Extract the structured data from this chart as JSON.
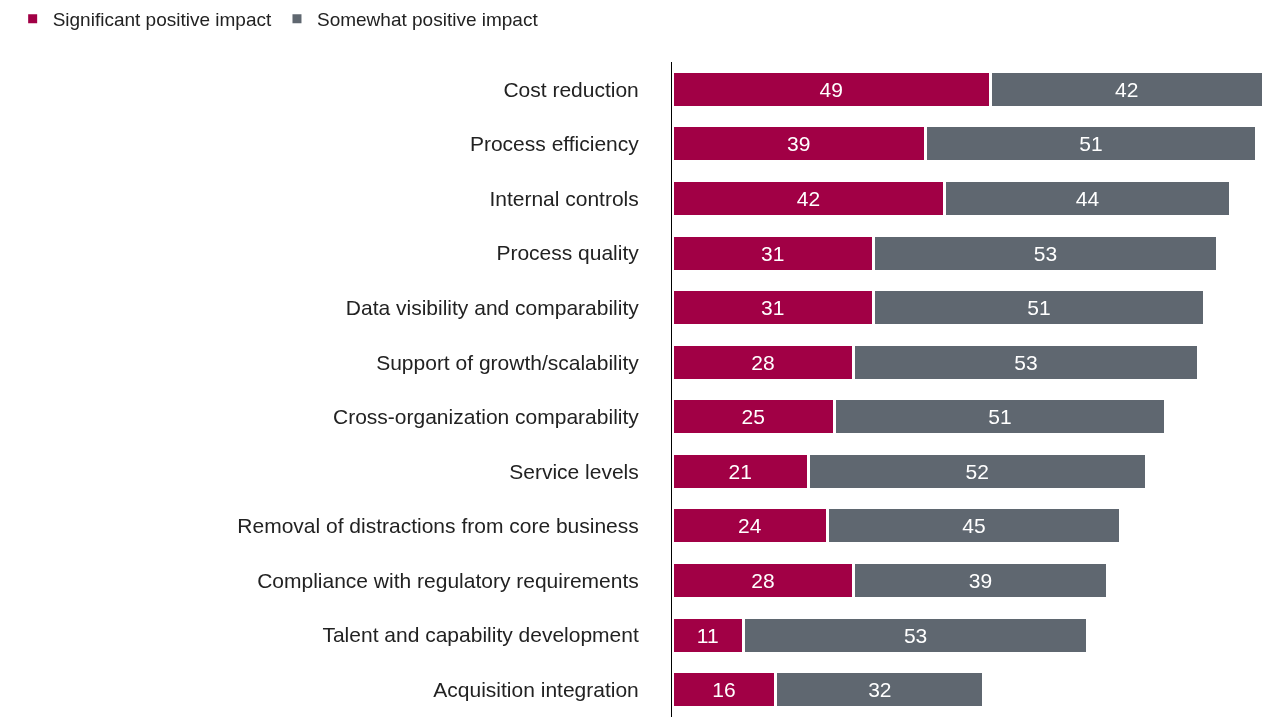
{
  "chart_data": {
    "type": "bar",
    "orientation": "horizontal",
    "stacked": true,
    "data_labels": true,
    "legend": "top left",
    "tick_labels": "y",
    "categories": [
      "Cost reduction",
      "Process efficiency",
      "Internal controls",
      "Process quality",
      "Data visibility and comparability",
      "Support of growth/scalability",
      "Cross-organization comparability",
      "Service levels",
      "Removal of distractions from core business",
      "Compliance with regulatory requirements",
      "Talent and capability development",
      "Acquisition integration"
    ],
    "series": [
      {
        "name": "Significant positive impact",
        "color": "#a10045",
        "values": [
          49,
          39,
          42,
          31,
          31,
          28,
          25,
          21,
          24,
          28,
          11,
          16
        ]
      },
      {
        "name": "Somewhat positive impact",
        "color": "#5f6770",
        "values": [
          42,
          51,
          44,
          53,
          51,
          53,
          51,
          52,
          45,
          39,
          53,
          32
        ]
      }
    ]
  }
}
